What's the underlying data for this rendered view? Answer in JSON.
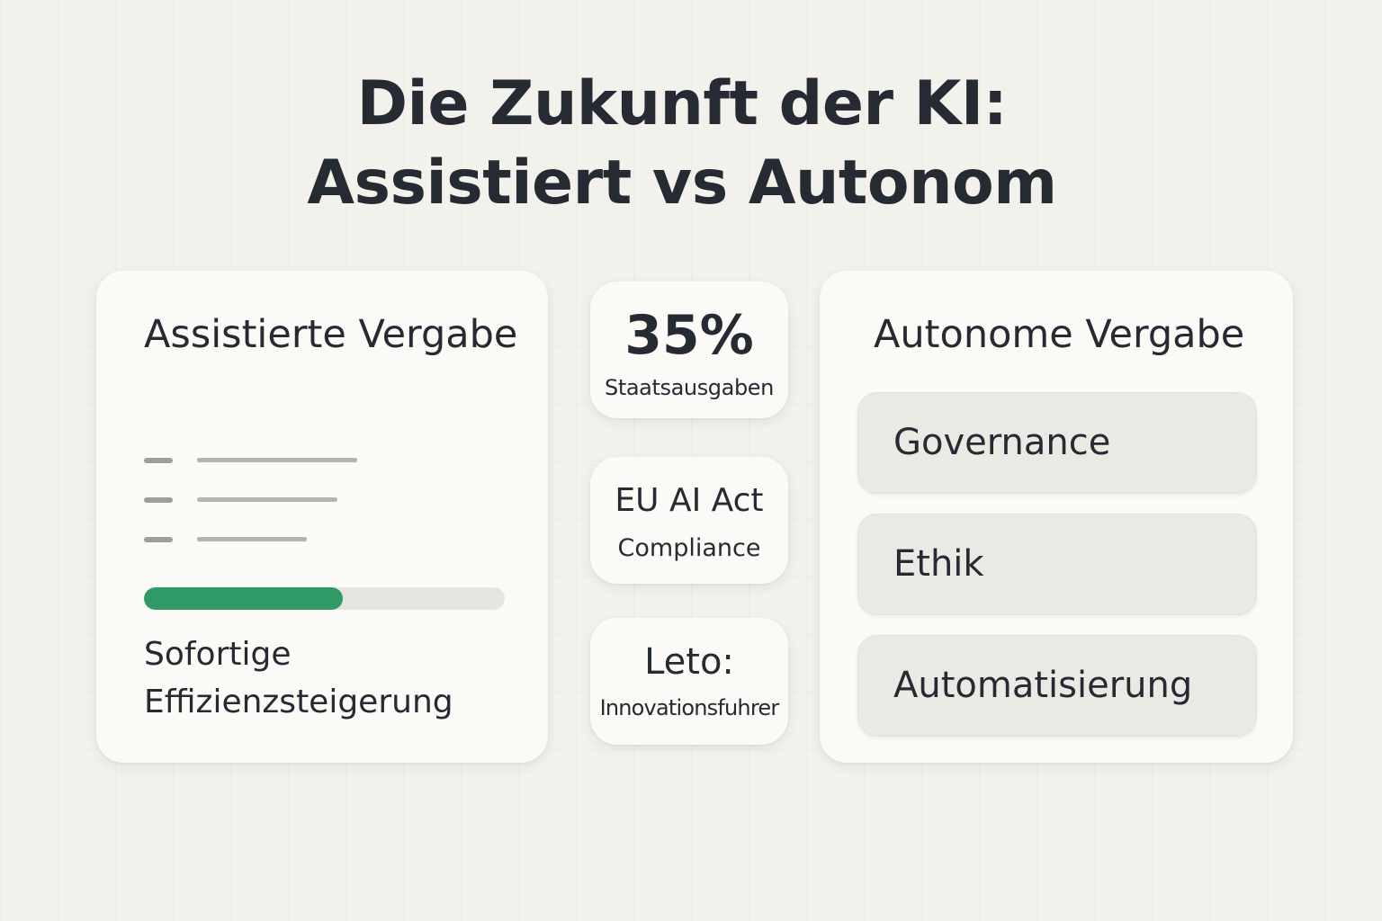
{
  "title": {
    "line1": "Die Zukunft der KI:",
    "line2": "Assistiert vs Autonom"
  },
  "assisted": {
    "heading": "Assistierte Vergabe",
    "progress_percent": 55,
    "progress_color": "#2f9a66",
    "footer_line1": "Sofortige",
    "footer_line2": "Effizienzsteigerung"
  },
  "stats": {
    "spend_value": "35%",
    "spend_label": "Staatsausgaben",
    "act_line1": "EU AI Act",
    "act_line2": "Compliance",
    "leto_line1": "Leto:",
    "leto_line2": "Innovationsfuhrer"
  },
  "autonomous": {
    "heading": "Autonome Vergabe",
    "items": [
      {
        "label": "Governance"
      },
      {
        "label": "Ethik"
      },
      {
        "label": "Automatisierung"
      }
    ]
  }
}
